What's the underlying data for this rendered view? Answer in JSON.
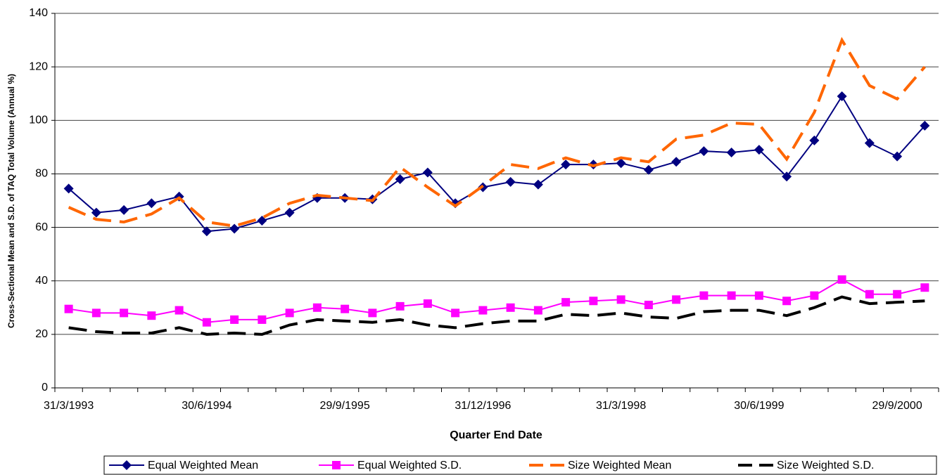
{
  "chart_data": {
    "type": "line",
    "x_label": "Quarter End Date",
    "y_label": "Cross-Sectional Mean and S.D. of TAQ Total Volume (Annual %)",
    "categories": [
      "31/3/1993",
      null,
      null,
      null,
      null,
      "30/6/1994",
      null,
      null,
      null,
      null,
      "29/9/1995",
      null,
      null,
      null,
      null,
      "31/12/1996",
      null,
      null,
      null,
      null,
      "31/3/1998",
      null,
      null,
      null,
      null,
      "30/6/1999",
      null,
      null,
      null,
      null,
      "29/9/2000",
      null
    ],
    "ylim": [
      0,
      140
    ],
    "yticks": [
      0,
      20,
      40,
      60,
      80,
      100,
      120,
      140
    ],
    "grid": true,
    "legend": "bottom",
    "series": [
      {
        "name": "Equal Weighted Mean",
        "color": "#000080",
        "marker": "diamond",
        "dashed": false,
        "values": [
          74.5,
          65.5,
          66.5,
          69,
          71.5,
          58.5,
          59.5,
          62.5,
          65.5,
          71,
          71,
          70.5,
          78,
          80.5,
          69,
          75,
          77,
          76,
          83.5,
          83.5,
          84,
          81.5,
          84.5,
          88.5,
          88,
          89,
          79,
          92.5,
          109,
          91.5,
          86.5,
          98
        ]
      },
      {
        "name": "Equal Weighted S.D.",
        "color": "#ff00ff",
        "marker": "square",
        "dashed": false,
        "values": [
          29.5,
          28,
          28,
          27,
          29,
          24.5,
          25.5,
          25.5,
          28,
          30,
          29.5,
          28,
          30.5,
          31.5,
          28,
          29,
          30,
          29,
          32,
          32.5,
          33,
          31,
          33,
          34.5,
          34.5,
          34.5,
          32.5,
          34.5,
          40.5,
          35,
          35,
          37.5
        ]
      },
      {
        "name": "Size Weighted Mean",
        "color": "#ff6600",
        "marker": "none",
        "dashed": true,
        "values": [
          67.5,
          63,
          62,
          65,
          71,
          62,
          60.5,
          63.5,
          69,
          72,
          71,
          70,
          82.5,
          75,
          68,
          75.5,
          83.5,
          82,
          86,
          83,
          86,
          84.5,
          93,
          94.5,
          99,
          98.5,
          85.5,
          103,
          130,
          113,
          108,
          120
        ]
      },
      {
        "name": "Size Weighted S.D.",
        "color": "#000000",
        "marker": "none",
        "dashed": true,
        "values": [
          22.5,
          21,
          20.5,
          20.5,
          22.5,
          20,
          20.5,
          20,
          23.5,
          25.5,
          25,
          24.5,
          25.5,
          23.5,
          22.5,
          24,
          25,
          25,
          27.5,
          27,
          28,
          26.5,
          26,
          28.5,
          29,
          29,
          27,
          30,
          34,
          31.5,
          32,
          32.5
        ]
      }
    ]
  }
}
